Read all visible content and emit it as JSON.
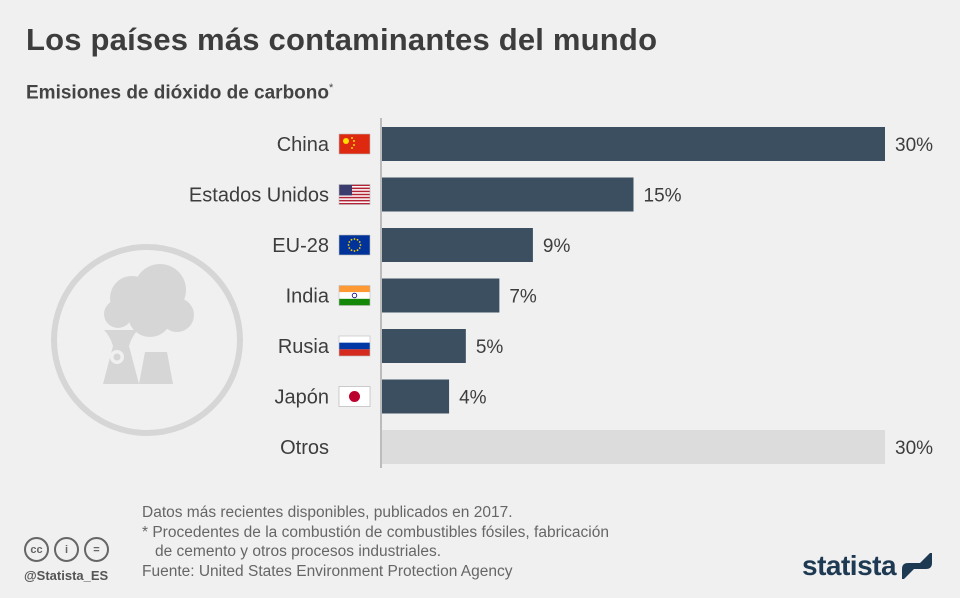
{
  "title": "Los países más contaminantes del mundo",
  "subtitle": "Emisiones de dióxido de carbono",
  "subtitle_mark": "*",
  "colors": {
    "bar": "#3c4f61",
    "bar_other": "#dcdcdc",
    "background": "#f0f0f0",
    "text": "#3d3d3d"
  },
  "chart_data": {
    "type": "bar",
    "orientation": "horizontal",
    "categories": [
      "China",
      "Estados Unidos",
      "EU-28",
      "India",
      "Rusia",
      "Japón",
      "Otros"
    ],
    "values": [
      30,
      15,
      9,
      7,
      5,
      4,
      30
    ],
    "value_labels": [
      "30%",
      "15%",
      "9%",
      "7%",
      "5%",
      "4%",
      "30%"
    ],
    "flags": [
      "china-flag-icon",
      "usa-flag-icon",
      "eu-flag-icon",
      "india-flag-icon",
      "russia-flag-icon",
      "japan-flag-icon",
      ""
    ],
    "unit": "%",
    "xlim": [
      0,
      30
    ],
    "grid": false
  },
  "notes": {
    "line1": "Datos más recientes disponibles, publicados en 2017.",
    "line2": "* Procedentes de la combustión de combustibles fósiles, fabricación",
    "line3": "de cemento y otros procesos industriales.",
    "source": "Fuente: United States Environment Protection Agency"
  },
  "license_icons": {
    "cc": "cc",
    "by": "i",
    "nd": "="
  },
  "handle": "@Statista_ES",
  "brand": "statista"
}
